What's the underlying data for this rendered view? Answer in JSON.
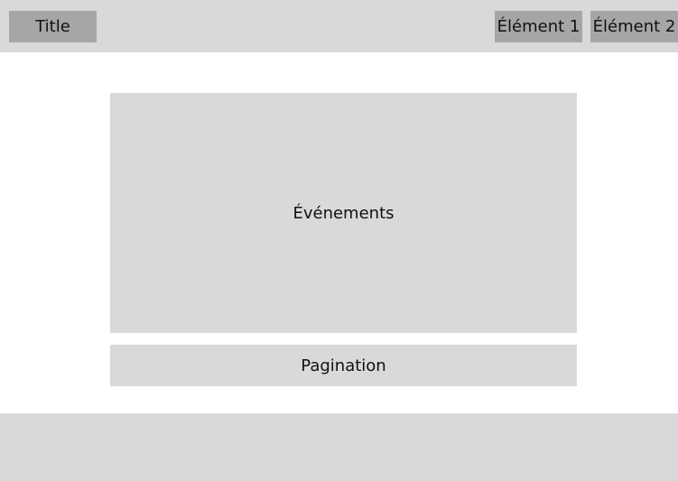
{
  "header": {
    "title": "Title",
    "nav": [
      {
        "label": "Élément 1"
      },
      {
        "label": "Élément 2"
      }
    ]
  },
  "main": {
    "events_label": "Événements",
    "pagination_label": "Pagination"
  },
  "colors": {
    "panel_bg": "#d9d9d9",
    "header_item_bg": "#a6a6a6",
    "page_bg": "#ffffff"
  }
}
